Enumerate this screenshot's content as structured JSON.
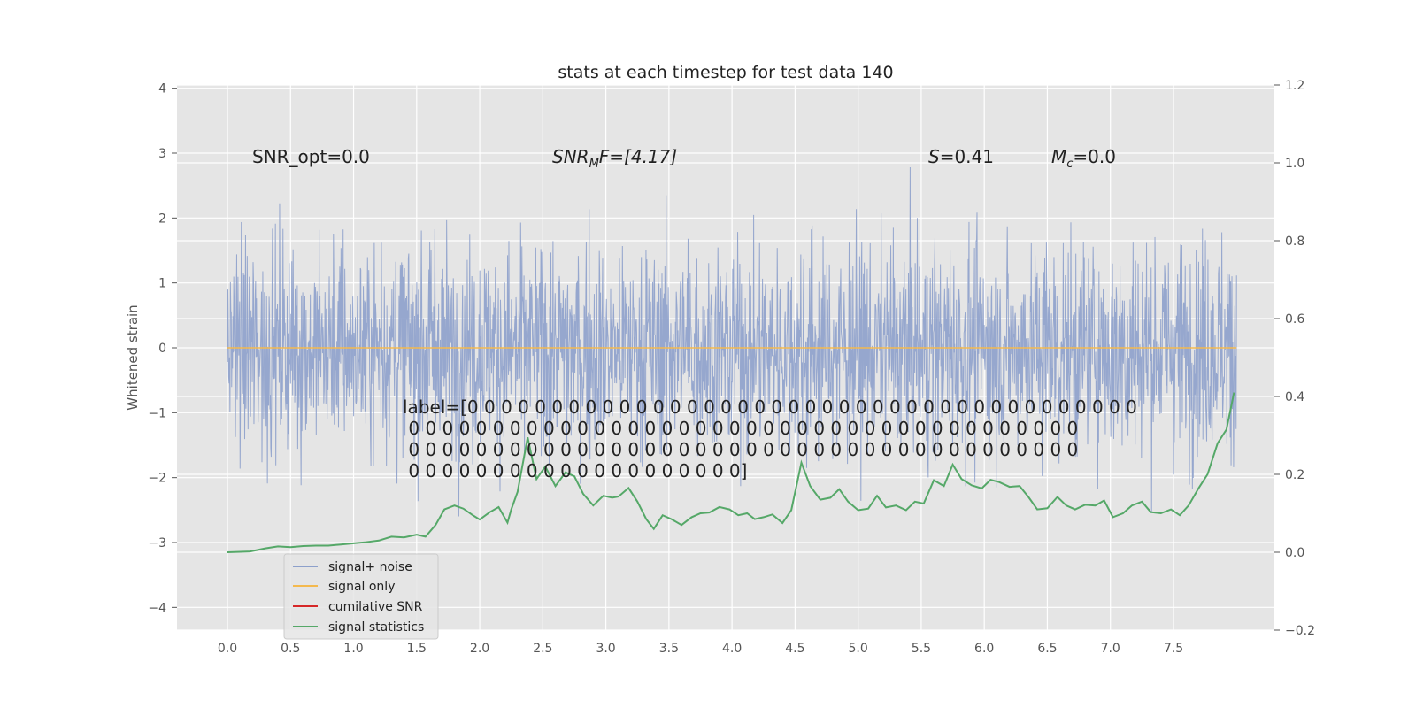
{
  "chart_data": {
    "type": "line",
    "title": "stats at each timestep for test data 140",
    "ylabel": "Whitened strain",
    "ylabel_right": "",
    "xlabel": "",
    "xlim": [
      -0.4,
      8.3
    ],
    "ylim": [
      -4.35,
      4.05
    ],
    "ylim_right": [
      -0.2,
      1.2
    ],
    "x_ticks": [
      "0.0",
      "0.5",
      "1.0",
      "1.5",
      "2.0",
      "2.5",
      "3.0",
      "3.5",
      "4.0",
      "4.5",
      "5.0",
      "5.5",
      "6.0",
      "6.5",
      "7.0",
      "7.5"
    ],
    "y_ticks": [
      "4",
      "3",
      "2",
      "1",
      "0",
      "−1",
      "−2",
      "−3",
      "−4"
    ],
    "y_right_ticks": [
      "1.2",
      "1.0",
      "0.8",
      "0.6",
      "0.4",
      "0.2",
      "0.0",
      "−0.2"
    ],
    "grid": true,
    "legend_position": "lower-left",
    "colors": {
      "background": "#e5e5e5",
      "grid": "#ffffff",
      "noise": "#8da0cb",
      "signal": "#f4b94e",
      "cumulative": "#d62728",
      "statistics": "#55a868"
    },
    "annotations": {
      "snr_opt": "SNR_opt=0.0",
      "snr_mf_main": "SNR",
      "snr_mf_sub": "M",
      "snr_mf_rest": "F=[4.17]",
      "s_main": "S",
      "s_rest": "=0.41",
      "mc_main": "M",
      "mc_sub": "c",
      "mc_rest": "=0.0",
      "label_lines": [
        "label=[0 0 0 0 0 0 0 0 0 0 0 0 0 0 0 0 0 0 0 0 0 0 0 0 0 0 0 0 0 0 0 0 0 0 0 0 0 0 0 0",
        " 0 0 0 0 0 0 0 0 0 0 0 0 0 0 0 0 0 0 0 0 0 0 0 0 0 0 0 0 0 0 0 0 0 0 0 0 0 0 0 0",
        " 0 0 0 0 0 0 0 0 0 0 0 0 0 0 0 0 0 0 0 0 0 0 0 0 0 0 0 0 0 0 0 0 0 0 0 0 0 0 0 0",
        " 0 0 0 0 0 0 0 0 0 0 0 0 0 0 0 0 0 0 0 0]"
      ]
    },
    "series": [
      {
        "name": "signal+ noise",
        "axis": "left",
        "description_range": [
          -3.95,
          3.65
        ],
        "x_range": [
          0.0,
          8.0
        ]
      },
      {
        "name": "signal only",
        "axis": "left",
        "x": [
          0.0,
          8.0
        ],
        "values": [
          0.0,
          0.0
        ]
      },
      {
        "name": "cumilative SNR",
        "axis": "right"
      },
      {
        "name": "signal statistics",
        "axis": "right",
        "x": [
          0.0,
          0.18,
          0.3,
          0.4,
          0.5,
          0.6,
          0.7,
          0.8,
          0.9,
          1.0,
          1.1,
          1.2,
          1.3,
          1.4,
          1.5,
          1.57,
          1.65,
          1.72,
          1.8,
          1.87,
          1.95,
          2.0,
          2.08,
          2.15,
          2.22,
          2.25,
          2.3,
          2.38,
          2.45,
          2.52,
          2.6,
          2.68,
          2.75,
          2.82,
          2.9,
          2.98,
          3.05,
          3.1,
          3.18,
          3.25,
          3.32,
          3.38,
          3.45,
          3.52,
          3.6,
          3.68,
          3.75,
          3.82,
          3.9,
          3.98,
          4.05,
          4.12,
          4.18,
          4.25,
          4.32,
          4.4,
          4.47,
          4.55,
          4.62,
          4.7,
          4.78,
          4.85,
          4.92,
          5.0,
          5.08,
          5.15,
          5.22,
          5.3,
          5.38,
          5.45,
          5.52,
          5.6,
          5.68,
          5.75,
          5.82,
          5.9,
          5.98,
          6.05,
          6.12,
          6.2,
          6.28,
          6.35,
          6.42,
          6.5,
          6.58,
          6.65,
          6.72,
          6.8,
          6.88,
          6.95,
          7.02,
          7.1,
          7.17,
          7.25,
          7.32,
          7.4,
          7.48,
          7.55,
          7.62,
          7.7,
          7.77,
          7.85,
          7.92,
          7.98
        ],
        "values": [
          0.0,
          0.002,
          0.01,
          0.015,
          0.013,
          0.016,
          0.017,
          0.017,
          0.02,
          0.023,
          0.026,
          0.03,
          0.04,
          0.038,
          0.045,
          0.04,
          0.07,
          0.11,
          0.12,
          0.112,
          0.094,
          0.084,
          0.103,
          0.116,
          0.076,
          0.11,
          0.155,
          0.295,
          0.188,
          0.22,
          0.17,
          0.205,
          0.195,
          0.15,
          0.12,
          0.145,
          0.14,
          0.143,
          0.165,
          0.13,
          0.085,
          0.06,
          0.095,
          0.085,
          0.07,
          0.09,
          0.1,
          0.102,
          0.116,
          0.11,
          0.095,
          0.1,
          0.085,
          0.09,
          0.097,
          0.075,
          0.108,
          0.23,
          0.17,
          0.135,
          0.14,
          0.162,
          0.13,
          0.108,
          0.112,
          0.145,
          0.115,
          0.12,
          0.108,
          0.13,
          0.125,
          0.185,
          0.17,
          0.225,
          0.188,
          0.172,
          0.164,
          0.186,
          0.18,
          0.168,
          0.17,
          0.142,
          0.11,
          0.113,
          0.142,
          0.12,
          0.11,
          0.122,
          0.12,
          0.133,
          0.09,
          0.1,
          0.12,
          0.13,
          0.103,
          0.1,
          0.11,
          0.095,
          0.12,
          0.165,
          0.2,
          0.28,
          0.315,
          0.41
        ]
      }
    ]
  }
}
